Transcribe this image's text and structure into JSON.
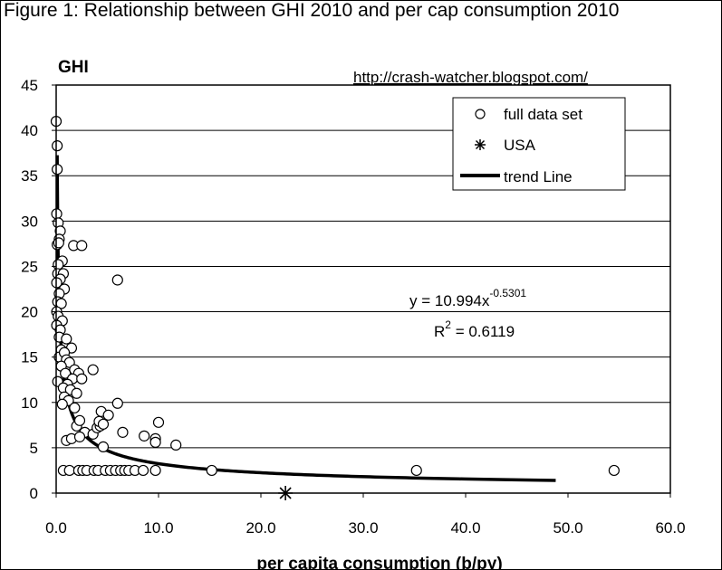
{
  "figure_title": "Figure 1: Relationship between GHI 2010 and per cap consumption 2010",
  "colors": {
    "background": "#ffffff",
    "axis": "#000000",
    "gridline": "#000000",
    "marker_fill": "#ffffff"
  },
  "chart_data": {
    "type": "scatter",
    "title": "Figure 1: Relationship between GHI 2010 and per cap consumption 2010",
    "ylabel": "GHI",
    "xlabel": "per capita consumption (b/py)",
    "source_note": "http://crash-watcher.blogspot.com/",
    "xlim": [
      0,
      60
    ],
    "ylim": [
      0,
      45
    ],
    "x_ticks": [
      0,
      10,
      20,
      30,
      40,
      50,
      60
    ],
    "x_tick_labels": [
      "0.0",
      "10.0",
      "20.0",
      "30.0",
      "40.0",
      "50.0",
      "60.0"
    ],
    "y_ticks": [
      0,
      5,
      10,
      15,
      20,
      25,
      30,
      35,
      40,
      45
    ],
    "y_tick_labels": [
      "0",
      "5",
      "10",
      "15",
      "20",
      "25",
      "30",
      "35",
      "40",
      "45"
    ],
    "grid": "horizontal",
    "legend": {
      "position": "top-right",
      "entries": [
        "full data set",
        "USA",
        "trend Line"
      ]
    },
    "series": [
      {
        "name": "full data set",
        "marker": "circle",
        "points": [
          [
            0.0,
            41.0
          ],
          [
            0.1,
            38.3
          ],
          [
            0.1,
            35.7
          ],
          [
            0.05,
            30.8
          ],
          [
            0.2,
            29.8
          ],
          [
            0.4,
            28.9
          ],
          [
            0.3,
            28.0
          ],
          [
            0.1,
            27.4
          ],
          [
            0.25,
            27.6
          ],
          [
            0.6,
            25.6
          ],
          [
            0.2,
            25.2
          ],
          [
            0.15,
            24.2
          ],
          [
            0.7,
            24.2
          ],
          [
            0.4,
            23.6
          ],
          [
            0.05,
            23.2
          ],
          [
            0.8,
            22.5
          ],
          [
            0.3,
            22.0
          ],
          [
            0.15,
            21.1
          ],
          [
            0.5,
            20.9
          ],
          [
            0.05,
            20.0
          ],
          [
            0.2,
            19.5
          ],
          [
            0.6,
            19.0
          ],
          [
            0.05,
            18.5
          ],
          [
            0.4,
            18.0
          ],
          [
            0.3,
            17.2
          ],
          [
            1.0,
            17.0
          ],
          [
            0.5,
            15.8
          ],
          [
            1.5,
            16.0
          ],
          [
            0.3,
            15.0
          ],
          [
            0.8,
            15.5
          ],
          [
            1.0,
            14.7
          ],
          [
            1.3,
            14.4
          ],
          [
            0.5,
            14.0
          ],
          [
            1.8,
            13.6
          ],
          [
            0.9,
            13.2
          ],
          [
            2.2,
            13.2
          ],
          [
            1.6,
            12.6
          ],
          [
            2.5,
            12.6
          ],
          [
            0.15,
            12.3
          ],
          [
            1.1,
            12.0
          ],
          [
            0.7,
            11.6
          ],
          [
            1.4,
            11.4
          ],
          [
            2.0,
            11.0
          ],
          [
            0.8,
            10.6
          ],
          [
            1.2,
            10.2
          ],
          [
            0.6,
            9.8
          ],
          [
            1.8,
            9.4
          ],
          [
            3.6,
            13.6
          ],
          [
            2.0,
            7.4
          ],
          [
            2.3,
            8.0
          ],
          [
            2.8,
            6.7
          ],
          [
            3.6,
            6.5
          ],
          [
            4.0,
            7.2
          ],
          [
            4.3,
            7.4
          ],
          [
            4.2,
            7.9
          ],
          [
            4.6,
            7.6
          ],
          [
            4.4,
            9.0
          ],
          [
            5.1,
            8.6
          ],
          [
            6.0,
            9.9
          ],
          [
            6.5,
            6.7
          ],
          [
            8.6,
            6.3
          ],
          [
            9.7,
            6.0
          ],
          [
            10.0,
            7.8
          ],
          [
            11.7,
            5.3
          ],
          [
            9.7,
            5.6
          ],
          [
            4.6,
            5.1
          ],
          [
            1.0,
            5.8
          ],
          [
            1.5,
            6.0
          ],
          [
            2.3,
            6.2
          ],
          [
            1.7,
            27.3
          ],
          [
            2.5,
            27.3
          ],
          [
            6.0,
            23.5
          ],
          [
            0.7,
            2.5
          ],
          [
            1.3,
            2.5
          ],
          [
            2.2,
            2.5
          ],
          [
            2.6,
            2.5
          ],
          [
            3.0,
            2.5
          ],
          [
            3.7,
            2.5
          ],
          [
            4.1,
            2.5
          ],
          [
            4.8,
            2.5
          ],
          [
            5.3,
            2.5
          ],
          [
            5.8,
            2.5
          ],
          [
            6.3,
            2.5
          ],
          [
            6.7,
            2.5
          ],
          [
            7.1,
            2.5
          ],
          [
            7.7,
            2.5
          ],
          [
            8.5,
            2.5
          ],
          [
            9.7,
            2.5
          ],
          [
            15.2,
            2.5
          ],
          [
            35.2,
            2.5
          ],
          [
            54.5,
            2.5
          ]
        ]
      },
      {
        "name": "USA",
        "marker": "star",
        "points": [
          [
            22.4,
            0.0
          ]
        ]
      },
      {
        "name": "trend Line",
        "type": "line",
        "equation": "y = 10.994x^-0.5301",
        "coefficient": 10.994,
        "exponent": -0.5301,
        "x_range": [
          0.1,
          48.8
        ]
      }
    ],
    "annotations": {
      "equation_base": "y = 10.994x",
      "equation_exp": "-0.5301",
      "r2_prefix": "R",
      "r2_power": "2",
      "r2_value": " = 0.6119"
    }
  }
}
